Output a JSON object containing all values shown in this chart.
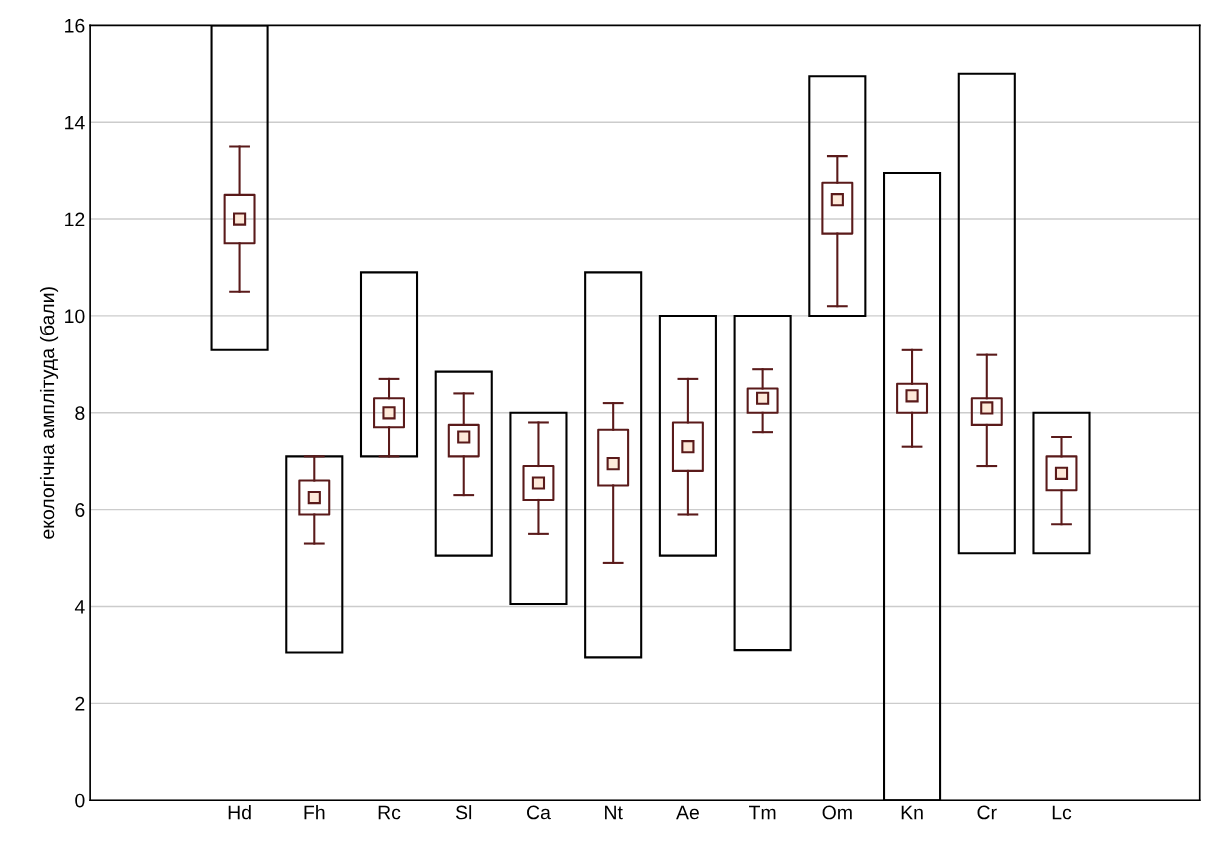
{
  "chart_data": {
    "type": "bar",
    "ylabel": "екологічна амплітуда (бали)",
    "categories": [
      "Hd",
      "Fh",
      "Rc",
      "Sl",
      "Ca",
      "Nt",
      "Ae",
      "Tm",
      "Om",
      "Kn",
      "Cr",
      "Lc"
    ],
    "ylim": [
      0,
      16
    ],
    "yticks": [
      0,
      2,
      4,
      6,
      8,
      10,
      12,
      14,
      16
    ],
    "grid": "y",
    "marker": "square",
    "series": [
      {
        "color": "#000000",
        "base": [
          9.3,
          3.05,
          7.1,
          5.05,
          4.05,
          2.95,
          5.05,
          3.1,
          10.0,
          0,
          5.1,
          5.1
        ],
        "values": [
          6.7,
          4.05,
          3.8,
          3.8,
          3.95,
          7.95,
          4.95,
          6.9,
          4.95,
          12.95,
          9.9,
          2.9
        ]
      },
      {
        "type": "box",
        "color": "#5a1a1a",
        "boxes": [
          {
            "low": 10.5,
            "q1": 11.5,
            "median": 12.0,
            "q3": 12.5,
            "high": 13.5
          },
          {
            "low": 5.3,
            "q1": 5.9,
            "median": 6.25,
            "q3": 6.6,
            "high": 7.1
          },
          {
            "low": 7.1,
            "q1": 7.7,
            "median": 8.0,
            "q3": 8.3,
            "high": 8.7
          },
          {
            "low": 6.3,
            "q1": 7.1,
            "median": 7.5,
            "q3": 7.75,
            "high": 8.4
          },
          {
            "low": 5.5,
            "q1": 6.2,
            "median": 6.55,
            "q3": 6.9,
            "high": 7.8
          },
          {
            "low": 4.9,
            "q1": 6.5,
            "median": 6.95,
            "q3": 7.65,
            "high": 8.2
          },
          {
            "low": 5.9,
            "q1": 6.8,
            "median": 7.3,
            "q3": 7.8,
            "high": 8.7
          },
          {
            "low": 7.6,
            "q1": 8.0,
            "median": 8.3,
            "q3": 8.5,
            "high": 8.9
          },
          {
            "low": 10.2,
            "q1": 11.7,
            "median": 12.4,
            "q3": 12.75,
            "high": 13.3
          },
          {
            "low": 7.3,
            "q1": 8.0,
            "median": 8.35,
            "q3": 8.6,
            "high": 9.3
          },
          {
            "low": 6.9,
            "q1": 7.75,
            "median": 8.1,
            "q3": 8.3,
            "high": 9.2
          },
          {
            "low": 5.7,
            "q1": 6.4,
            "median": 6.75,
            "q3": 7.1,
            "high": 7.5
          }
        ]
      }
    ]
  }
}
